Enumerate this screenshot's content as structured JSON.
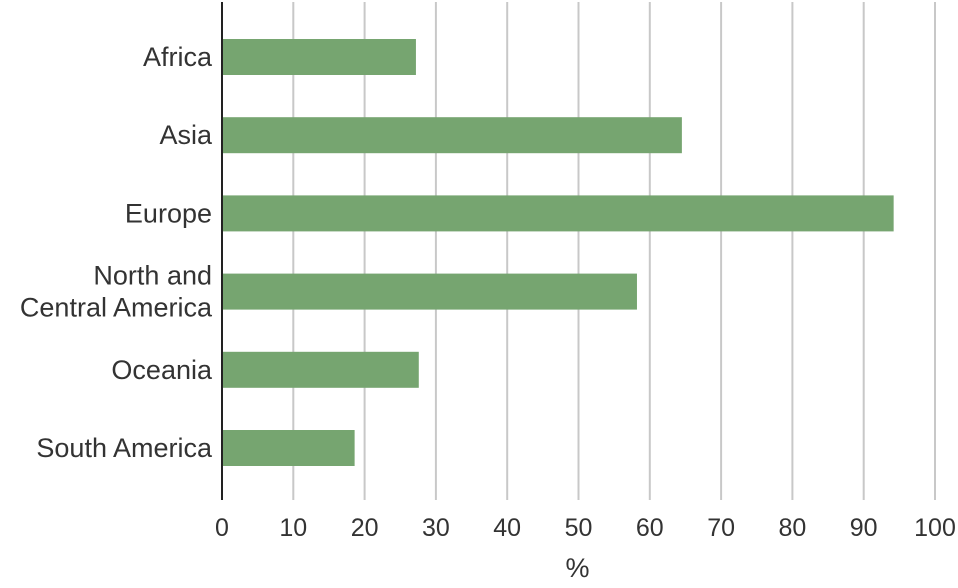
{
  "chart_data": {
    "type": "bar",
    "orientation": "horizontal",
    "categories": [
      "Africa",
      "Asia",
      "Europe",
      "North and\nCentral America",
      "Oceania",
      "South America"
    ],
    "values": [
      27.2,
      64.5,
      94.2,
      58.2,
      27.6,
      18.6
    ],
    "xlabel": "%",
    "ylabel": "",
    "xlim": [
      0,
      100
    ],
    "xticks": [
      "0",
      "10",
      "20",
      "30",
      "40",
      "50",
      "60",
      "70",
      "80",
      "90",
      "100"
    ],
    "grid": "vertical",
    "legend": "none",
    "colors": {
      "bar": "#76a570",
      "grid": "#c8c8c8",
      "axis": "#222222",
      "text": "#333333"
    }
  }
}
